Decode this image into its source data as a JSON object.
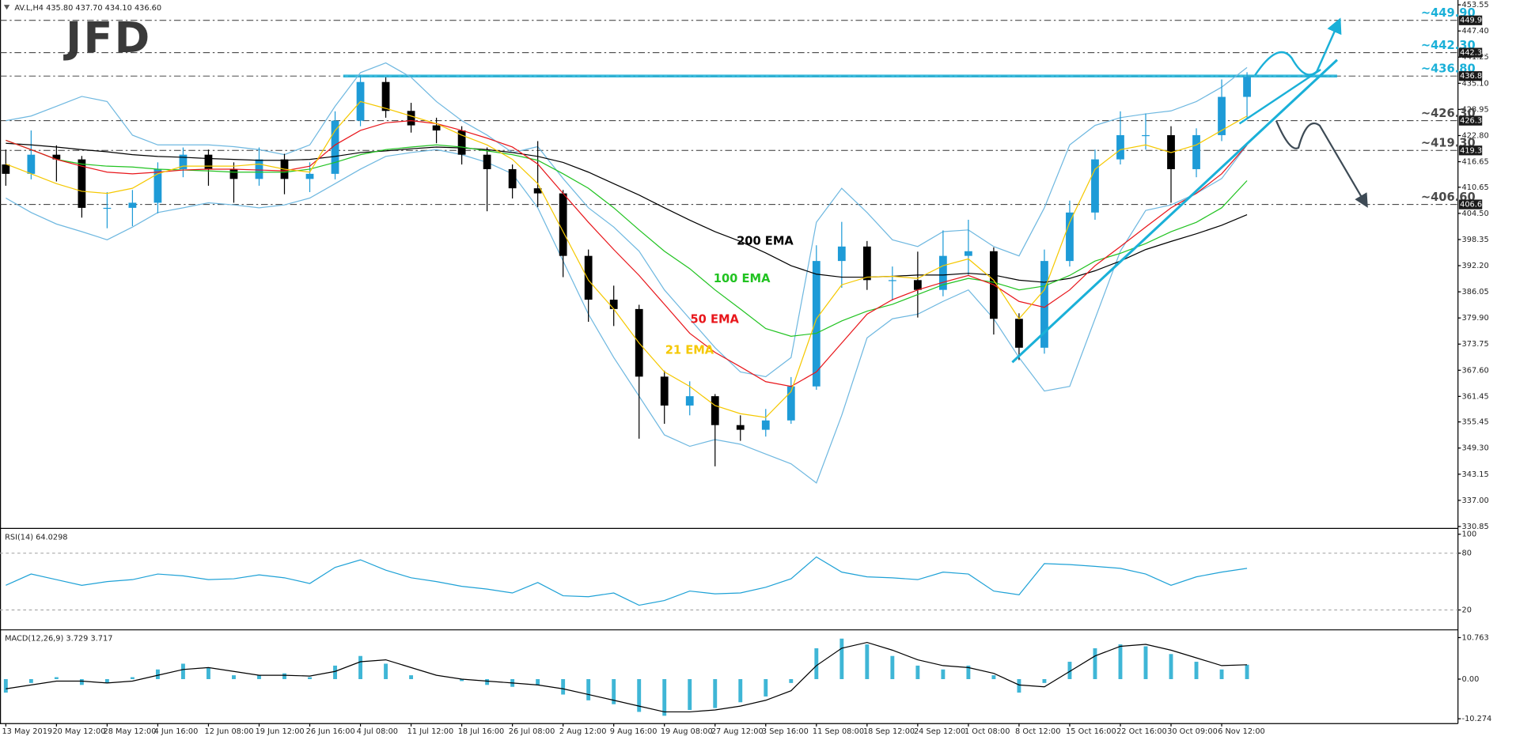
{
  "logo": "JFD",
  "chart_data": [
    {
      "type": "candlestick",
      "title": "AV.L,H4 435.80 437.70 434.10 436.60",
      "categories": [
        "13 May 2019",
        null,
        "20 May 12:00",
        null,
        "28 May 12:00",
        null,
        "4 Jun 16:00",
        null,
        "12 Jun 08:00",
        null,
        "19 Jun 12:00",
        null,
        "26 Jun 16:00",
        null,
        "4 Jul 08:00",
        null,
        "11 Jul 12:00",
        null,
        "18 Jul 16:00",
        null,
        "26 Jul 08:00",
        null,
        "2 Aug 12:00",
        null,
        "9 Aug 16:00",
        null,
        "19 Aug 08:00",
        null,
        "27 Aug 12:00",
        null,
        "3 Sep 16:00",
        null,
        "11 Sep 08:00",
        null,
        "18 Sep 12:00",
        null,
        "24 Sep 12:00",
        null,
        "1 Oct 08:00",
        null,
        "8 Oct 12:00",
        null,
        "15 Oct 16:00",
        null,
        "22 Oct 16:00",
        null,
        "30 Oct 09:00",
        null,
        "6 Nov 12:00",
        null
      ],
      "open": [
        416.0,
        413.8,
        418.3,
        417.2,
        405.8,
        405.8,
        407.0,
        414.9,
        418.3,
        414.9,
        412.6,
        417.2,
        412.6,
        413.8,
        426.3,
        435.4,
        428.6,
        425.2,
        424.0,
        418.3,
        414.9,
        410.4,
        409.2,
        394.5,
        384.2,
        382.0,
        366.1,
        359.3,
        361.5,
        354.7,
        353.6,
        355.8,
        363.8,
        393.3,
        396.7,
        388.8,
        388.8,
        386.5,
        394.5,
        395.6,
        379.7,
        372.9,
        393.3,
        404.7,
        417.2,
        422.9,
        422.9,
        414.9,
        422.9,
        431.9
      ],
      "high": [
        419.5,
        424.0,
        420.5,
        418.0,
        409.5,
        410.0,
        416.5,
        420.0,
        419.5,
        416.5,
        420.0,
        418.5,
        416.5,
        428.5,
        437.0,
        436.5,
        430.5,
        427.0,
        425.0,
        420.0,
        416.0,
        421.5,
        410.0,
        396.0,
        387.5,
        383.0,
        367.5,
        365.0,
        362.0,
        357.0,
        358.5,
        366.0,
        397.0,
        402.5,
        398.0,
        392.0,
        395.5,
        400.5,
        403.0,
        396.5,
        381.0,
        396.0,
        407.5,
        419.5,
        428.5,
        428.0,
        425.0,
        424.5,
        436.0,
        437.7
      ],
      "low": [
        411.0,
        412.5,
        412.0,
        403.5,
        401.0,
        401.5,
        404.5,
        413.0,
        411.0,
        407.0,
        411.0,
        409.0,
        409.5,
        412.5,
        425.0,
        427.0,
        423.5,
        421.0,
        416.0,
        405.0,
        408.0,
        406.0,
        389.5,
        379.0,
        378.0,
        351.5,
        355.0,
        357.0,
        345.0,
        351.0,
        352.0,
        355.0,
        363.0,
        387.0,
        386.5,
        384.0,
        380.0,
        385.0,
        390.0,
        376.0,
        370.0,
        371.5,
        392.0,
        403.0,
        416.0,
        419.5,
        407.0,
        413.0,
        421.5,
        427.0
      ],
      "close": [
        413.8,
        418.3,
        417.2,
        405.8,
        405.8,
        407.0,
        414.9,
        418.3,
        414.9,
        412.6,
        417.2,
        412.6,
        413.8,
        426.3,
        435.4,
        428.6,
        425.2,
        424.0,
        418.3,
        414.9,
        410.4,
        409.2,
        394.5,
        384.2,
        382.0,
        366.1,
        359.3,
        361.5,
        354.7,
        353.6,
        355.8,
        363.8,
        393.3,
        396.7,
        388.8,
        388.8,
        386.5,
        394.5,
        395.6,
        379.7,
        372.9,
        393.3,
        404.7,
        417.2,
        422.9,
        422.9,
        414.9,
        422.9,
        431.9,
        436.6
      ],
      "up_color": "#1e9bd7",
      "down_color": "#000000",
      "series": [
        {
          "name": "200 EMA",
          "color": "#000000",
          "values": [
            421.0,
            420.6,
            420.1,
            419.5,
            419.0,
            418.3,
            417.9,
            417.7,
            417.4,
            417.2,
            417.0,
            417.0,
            417.2,
            417.9,
            418.8,
            419.2,
            419.7,
            420.1,
            419.9,
            419.5,
            418.8,
            417.9,
            416.5,
            414.2,
            411.5,
            408.8,
            405.8,
            402.9,
            400.2,
            397.9,
            395.2,
            392.2,
            390.2,
            389.5,
            389.5,
            389.7,
            390.0,
            390.0,
            390.4,
            390.0,
            388.8,
            388.3,
            389.2,
            391.0,
            393.3,
            396.0,
            397.9,
            399.7,
            401.7,
            404.2
          ]
        },
        {
          "name": "100 EMA",
          "color": "#22c322",
          "values": [
            421.7,
            419.5,
            417.2,
            416.1,
            415.6,
            415.4,
            414.9,
            414.7,
            414.5,
            414.2,
            414.2,
            414.2,
            414.9,
            416.5,
            418.3,
            419.5,
            420.1,
            420.6,
            420.1,
            419.2,
            418.3,
            417.0,
            413.8,
            410.4,
            405.8,
            400.6,
            395.6,
            391.5,
            386.5,
            382.0,
            377.4,
            375.6,
            376.3,
            379.2,
            381.5,
            383.1,
            385.4,
            387.7,
            389.2,
            388.3,
            386.5,
            387.4,
            389.9,
            393.3,
            395.1,
            397.4,
            400.2,
            402.4,
            405.8,
            412.2
          ]
        },
        {
          "name": "50 EMA",
          "color": "#e8161b",
          "values": [
            421.7,
            419.5,
            417.2,
            415.6,
            414.2,
            413.8,
            414.2,
            414.7,
            414.9,
            414.9,
            414.7,
            414.5,
            415.6,
            420.6,
            424.0,
            425.8,
            426.3,
            425.6,
            424.0,
            422.2,
            420.1,
            416.1,
            409.2,
            402.4,
            396.0,
            389.9,
            383.1,
            376.3,
            371.8,
            368.4,
            364.9,
            363.8,
            367.2,
            374.0,
            380.8,
            384.2,
            386.5,
            388.3,
            389.9,
            387.7,
            383.8,
            382.4,
            386.5,
            392.2,
            396.7,
            401.3,
            405.8,
            409.2,
            413.8,
            420.6
          ]
        },
        {
          "name": "21 EMA",
          "color": "#f5c800",
          "values": [
            416.1,
            413.8,
            411.5,
            409.7,
            409.2,
            410.4,
            413.8,
            415.6,
            415.6,
            415.6,
            416.1,
            414.9,
            414.2,
            424.0,
            430.8,
            429.2,
            427.4,
            425.6,
            422.9,
            420.6,
            417.2,
            411.5,
            400.2,
            388.8,
            382.0,
            374.0,
            367.2,
            363.8,
            359.3,
            357.4,
            356.5,
            362.6,
            379.7,
            387.7,
            389.5,
            389.7,
            389.2,
            392.2,
            393.8,
            388.8,
            379.7,
            386.5,
            402.4,
            414.9,
            419.5,
            420.6,
            418.8,
            420.6,
            424.0,
            427.4
          ]
        }
      ],
      "bands": {
        "color": "#6fb8e0",
        "upper": [
          426.3,
          427.4,
          429.7,
          432.0,
          430.8,
          422.9,
          420.6,
          420.6,
          420.6,
          420.2,
          419.5,
          418.3,
          420.6,
          429.7,
          437.6,
          439.9,
          436.5,
          430.8,
          426.3,
          422.9,
          418.8,
          420.2,
          412.7,
          405.8,
          401.3,
          395.6,
          386.5,
          379.7,
          372.9,
          367.2,
          366.1,
          370.6,
          402.4,
          410.4,
          404.7,
          398.3,
          396.7,
          400.2,
          400.6,
          396.7,
          394.5,
          405.8,
          420.6,
          425.2,
          427.0,
          427.9,
          428.6,
          430.8,
          434.2,
          438.8
        ],
        "lower": [
          408.1,
          404.7,
          402.0,
          400.2,
          398.3,
          401.3,
          404.7,
          405.8,
          407.0,
          406.5,
          405.8,
          406.5,
          408.1,
          411.5,
          414.9,
          417.9,
          418.8,
          419.5,
          418.3,
          416.5,
          413.8,
          405.8,
          393.3,
          380.8,
          370.6,
          361.5,
          352.4,
          349.7,
          351.3,
          350.2,
          347.9,
          345.6,
          341.1,
          357.0,
          375.2,
          379.7,
          380.8,
          383.8,
          386.5,
          379.7,
          370.6,
          362.7,
          363.8,
          379.7,
          395.6,
          405.2,
          406.5,
          409.2,
          412.7,
          420.6
        ]
      },
      "ylim": [
        330.85,
        453.55
      ],
      "yticks": [
        453.55,
        {
          "value": 447.4,
          "label": "447.40"
        },
        441.25,
        {
          "value": 435.1,
          "label": "435.10"
        },
        428.95,
        {
          "value": 422.8,
          "label": "422.80"
        },
        416.65,
        410.65,
        {
          "value": 404.5,
          "label": "404.50"
        },
        398.35,
        {
          "value": 392.2,
          "label": "392.20"
        },
        386.05,
        {
          "value": 379.9,
          "label": "379.90"
        },
        373.75,
        {
          "value": 367.6,
          "label": "367.60"
        },
        361.45,
        355.45,
        {
          "value": 349.3,
          "label": "349.30"
        },
        343.15,
        {
          "value": 337,
          "label": "337.00"
        },
        330.85
      ],
      "levels": [
        {
          "value": 449.9,
          "label": "~449.90",
          "tag": "449.90",
          "color": "#1ab0d8"
        },
        {
          "value": 442.3,
          "label": "~442.30",
          "tag": "442.30",
          "color": "#1ab0d8"
        },
        {
          "value": 436.8,
          "label": "~436.80",
          "tag": "436.80",
          "color": "#1ab0d8",
          "zone": true
        },
        {
          "value": 426.3,
          "label": "~426.30",
          "tag": "426.30",
          "color": "#4a4a4a"
        },
        {
          "value": 419.3,
          "label": "~419.30",
          "tag": "419.30",
          "color": "#4a4a4a"
        },
        {
          "value": 406.6,
          "label": "~406.60",
          "tag": "406.60",
          "color": "#4a4a4a"
        }
      ]
    },
    {
      "type": "line",
      "title": "RSI(14) 64.0298",
      "series": [
        {
          "color": "#1ea1d6",
          "values": [
            46,
            58,
            52,
            46,
            50,
            52,
            58,
            56,
            52,
            53,
            57,
            54,
            48,
            65,
            73,
            62,
            54,
            50,
            45,
            42,
            38,
            49,
            35,
            34,
            38,
            25,
            30,
            40,
            37,
            38,
            44,
            53,
            76,
            60,
            55,
            54,
            52,
            60,
            58,
            40,
            36,
            69,
            68,
            66,
            64,
            58,
            46,
            55,
            60,
            64
          ]
        }
      ],
      "ylim": [
        0,
        100
      ],
      "yticks": [
        20,
        80,
        100
      ],
      "grid": true
    },
    {
      "type": "macd",
      "title": "MACD(12,26,9) 3.729 3.717",
      "histogram": {
        "color": "#3fb6d6",
        "values": [
          -3.5,
          -1.0,
          0.5,
          -1.5,
          -1.0,
          0.5,
          2.5,
          4.0,
          3.0,
          1.0,
          1.0,
          1.5,
          0.5,
          3.5,
          6.0,
          4.0,
          1.0,
          0.0,
          -0.5,
          -1.5,
          -2.0,
          -1.5,
          -4.0,
          -5.5,
          -6.5,
          -8.5,
          -9.5,
          -8.0,
          -7.5,
          -6.0,
          -4.5,
          -1.0,
          8.0,
          10.5,
          9.0,
          6.0,
          3.5,
          2.5,
          3.5,
          1.0,
          -3.5,
          -1.0,
          4.5,
          8.0,
          9.0,
          8.5,
          6.5,
          4.5,
          2.5,
          3.73
        ]
      },
      "signal": {
        "color": "#000000",
        "values": [
          -2.5,
          -1.5,
          -0.5,
          -0.5,
          -1.0,
          -0.5,
          1.0,
          2.5,
          3.0,
          2.0,
          1.0,
          1.0,
          0.8,
          2.0,
          4.5,
          5.0,
          3.0,
          1.0,
          0.0,
          -0.5,
          -1.0,
          -1.5,
          -2.5,
          -4.0,
          -5.5,
          -7.0,
          -8.5,
          -8.5,
          -8.0,
          -7.0,
          -5.5,
          -3.0,
          3.5,
          8.0,
          9.5,
          7.5,
          5.0,
          3.5,
          3.0,
          1.5,
          -1.5,
          -2.0,
          2.0,
          6.0,
          8.5,
          9.0,
          7.5,
          5.5,
          3.5,
          3.72
        ]
      },
      "ylim": [
        -10.274,
        10.763
      ],
      "yticks": [
        10.763,
        {
          "value": 0,
          "label": "0.00"
        },
        -10.274
      ]
    }
  ]
}
